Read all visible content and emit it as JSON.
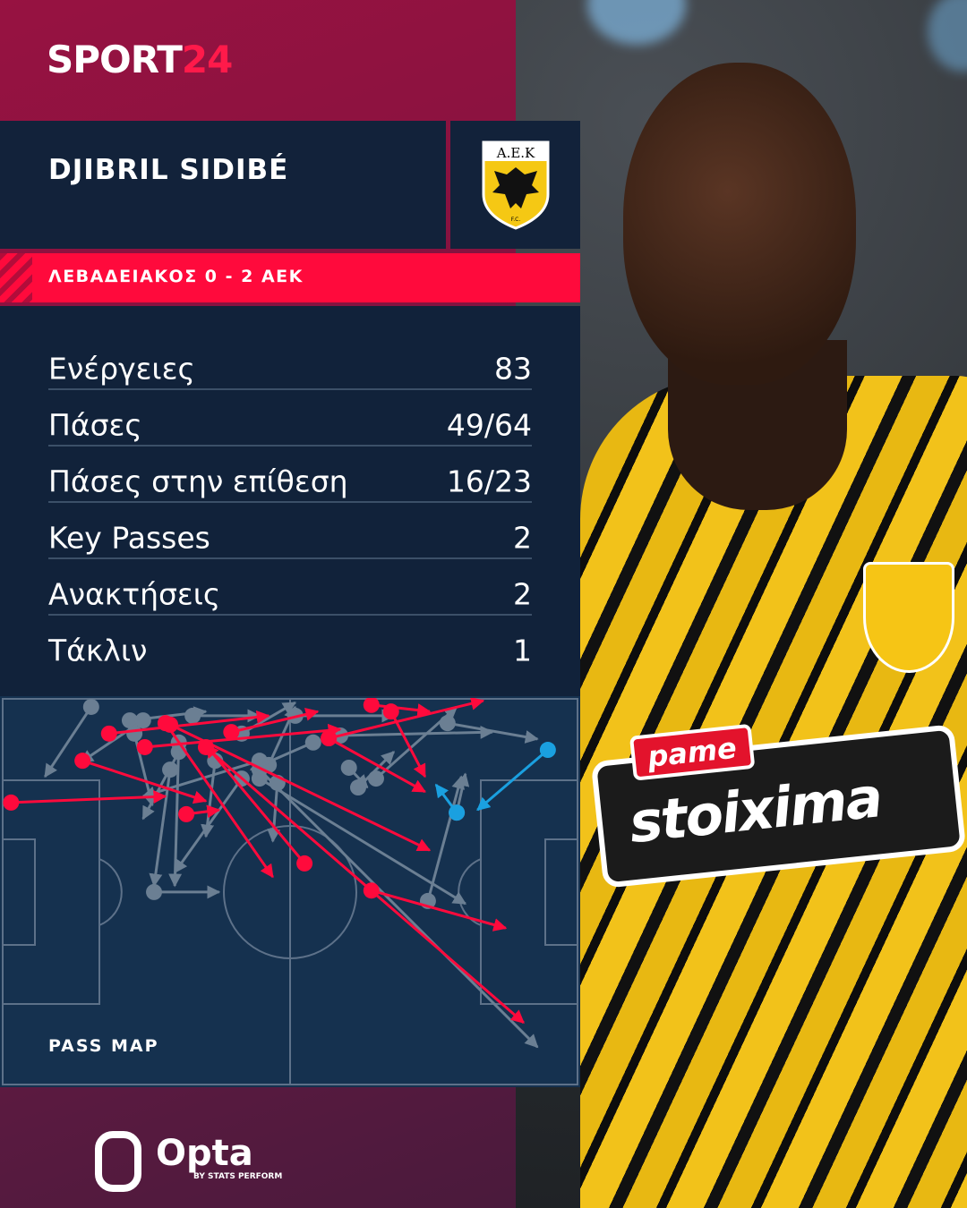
{
  "brand": {
    "logo_text": "SPORT",
    "logo_number": "24"
  },
  "player": {
    "name": "DJIBRIL SIDIBÉ",
    "club_crest_text": "A.E.K",
    "club_crest_sub": "F.C."
  },
  "match": {
    "title": "ΛΕΒΑΔΕΙΑΚΟΣ 0 - 2 ΑΕΚ"
  },
  "stats": [
    {
      "label": "Ενέργειες",
      "value": "83"
    },
    {
      "label": "Πάσες",
      "value": "49/64"
    },
    {
      "label": "Πάσες στην επίθεση",
      "value": "16/23"
    },
    {
      "label": "Key Passes",
      "value": "2"
    },
    {
      "label": "Ανακτήσεις",
      "value": "2"
    },
    {
      "label": "Τάκλιν",
      "value": "1"
    }
  ],
  "photo": {
    "sponsor_top": "pame",
    "sponsor_main": "stoixima"
  },
  "footer": {
    "provider": "Opta",
    "provider_sub": "BY STATS PERFORM"
  },
  "colors": {
    "accent": "#ff0a3c",
    "panel": "#11223a",
    "pitch": "#15314f",
    "pass_red": "#ff0a3c",
    "pass_grey": "#6b7f93",
    "pass_blue": "#1aa0e0"
  },
  "chart_data": {
    "type": "pass-map",
    "title": "PASS MAP",
    "coordinate_system": "pitch 0-100 (x: left goal to right goal, y: top touchline to bottom touchline)",
    "passes": [
      {
        "color": "red",
        "start": [
          1.6,
          27.0
        ],
        "end": [
          28.4,
          25.4
        ]
      },
      {
        "color": "red",
        "start": [
          14.0,
          16.2
        ],
        "end": [
          35.4,
          26.6
        ]
      },
      {
        "color": "red",
        "start": [
          18.6,
          9.2
        ],
        "end": [
          46.3,
          4.6
        ]
      },
      {
        "color": "red",
        "start": [
          24.8,
          12.7
        ],
        "end": [
          58.7,
          8.1
        ]
      },
      {
        "color": "red",
        "start": [
          28.4,
          6.5
        ],
        "end": [
          47.0,
          46.2
        ]
      },
      {
        "color": "red",
        "start": [
          29.2,
          6.9
        ],
        "end": [
          74.2,
          39.3
        ]
      },
      {
        "color": "red",
        "start": [
          32.0,
          30.0
        ],
        "end": [
          37.7,
          28.9
        ]
      },
      {
        "color": "red",
        "start": [
          52.5,
          42.7
        ],
        "end": [
          35.4,
          12.2
        ]
      },
      {
        "color": "red",
        "start": [
          56.7,
          10.4
        ],
        "end": [
          73.4,
          24.2
        ]
      },
      {
        "color": "red",
        "start": [
          56.7,
          10.4
        ],
        "end": [
          83.5,
          0.7
        ]
      },
      {
        "color": "red",
        "start": [
          64.1,
          1.8
        ],
        "end": [
          74.2,
          3.5
        ]
      },
      {
        "color": "red",
        "start": [
          67.5,
          3.5
        ],
        "end": [
          73.4,
          20.3
        ]
      },
      {
        "color": "red",
        "start": [
          64.1,
          49.7
        ],
        "end": [
          87.4,
          59.4
        ]
      },
      {
        "color": "red",
        "start": [
          35.4,
          12.7
        ],
        "end": [
          90.5,
          83.8
        ]
      },
      {
        "color": "red",
        "start": [
          39.8,
          8.8
        ],
        "end": [
          54.8,
          3.5
        ]
      },
      {
        "color": "grey",
        "start": [
          15.5,
          2.3
        ],
        "end": [
          7.5,
          20.3
        ]
      },
      {
        "color": "grey",
        "start": [
          22.2,
          5.8
        ],
        "end": [
          35.4,
          3.5
        ]
      },
      {
        "color": "grey",
        "start": [
          24.5,
          5.8
        ],
        "end": [
          13.7,
          16.6
        ]
      },
      {
        "color": "grey",
        "start": [
          26.4,
          50.1
        ],
        "end": [
          37.7,
          50.1
        ]
      },
      {
        "color": "grey",
        "start": [
          29.2,
          18.5
        ],
        "end": [
          26.4,
          48.5
        ]
      },
      {
        "color": "grey",
        "start": [
          78.9,
          29.6
        ],
        "end": [
          80.4,
          19.6
        ]
      },
      {
        "color": "grey",
        "start": [
          73.9,
          52.4
        ],
        "end": [
          79.7,
          20.3
        ]
      },
      {
        "color": "grey",
        "start": [
          44.7,
          18.5
        ],
        "end": [
          92.9,
          90.1
        ]
      },
      {
        "color": "grey",
        "start": [
          44.7,
          20.8
        ],
        "end": [
          80.4,
          53.1
        ]
      },
      {
        "color": "grey",
        "start": [
          46.3,
          17.3
        ],
        "end": [
          50.9,
          2.3
        ]
      },
      {
        "color": "grey",
        "start": [
          30.7,
          13.9
        ],
        "end": [
          24.5,
          31.2
        ]
      },
      {
        "color": "grey",
        "start": [
          37.0,
          16.2
        ],
        "end": [
          35.4,
          35.8
        ]
      },
      {
        "color": "grey",
        "start": [
          41.6,
          20.8
        ],
        "end": [
          30.0,
          45.0
        ]
      },
      {
        "color": "grey",
        "start": [
          47.8,
          21.9
        ],
        "end": [
          47.0,
          37.0
        ]
      },
      {
        "color": "grey",
        "start": [
          61.8,
          23.1
        ],
        "end": [
          68.0,
          13.9
        ]
      },
      {
        "color": "grey",
        "start": [
          64.9,
          20.8
        ],
        "end": [
          78.9,
          2.3
        ]
      },
      {
        "color": "grey",
        "start": [
          77.3,
          6.5
        ],
        "end": [
          92.9,
          10.6
        ]
      },
      {
        "color": "grey",
        "start": [
          58.7,
          9.7
        ],
        "end": [
          85.1,
          8.8
        ]
      },
      {
        "color": "grey",
        "start": [
          50.9,
          4.6
        ],
        "end": [
          68.0,
          4.6
        ]
      },
      {
        "color": "grey",
        "start": [
          23.0,
          9.2
        ],
        "end": [
          26.1,
          27.7
        ]
      },
      {
        "color": "grey",
        "start": [
          44.7,
          16.2
        ],
        "end": [
          24.5,
          25.4
        ]
      },
      {
        "color": "grey",
        "start": [
          54.0,
          11.5
        ],
        "end": [
          43.2,
          18.5
        ]
      },
      {
        "color": "grey",
        "start": [
          60.2,
          18.0
        ],
        "end": [
          63.4,
          23.1
        ]
      },
      {
        "color": "grey",
        "start": [
          33.1,
          4.6
        ],
        "end": [
          44.7,
          4.6
        ]
      },
      {
        "color": "grey",
        "start": [
          41.6,
          9.2
        ],
        "end": [
          50.9,
          1.2
        ]
      },
      {
        "color": "grey",
        "start": [
          30.7,
          11.5
        ],
        "end": [
          30.0,
          48.5
        ]
      },
      {
        "color": "blue",
        "start": [
          94.7,
          13.4
        ],
        "end": [
          82.5,
          28.9
        ]
      },
      {
        "color": "blue",
        "start": [
          78.9,
          29.6
        ],
        "end": [
          75.3,
          22.4
        ]
      }
    ]
  }
}
